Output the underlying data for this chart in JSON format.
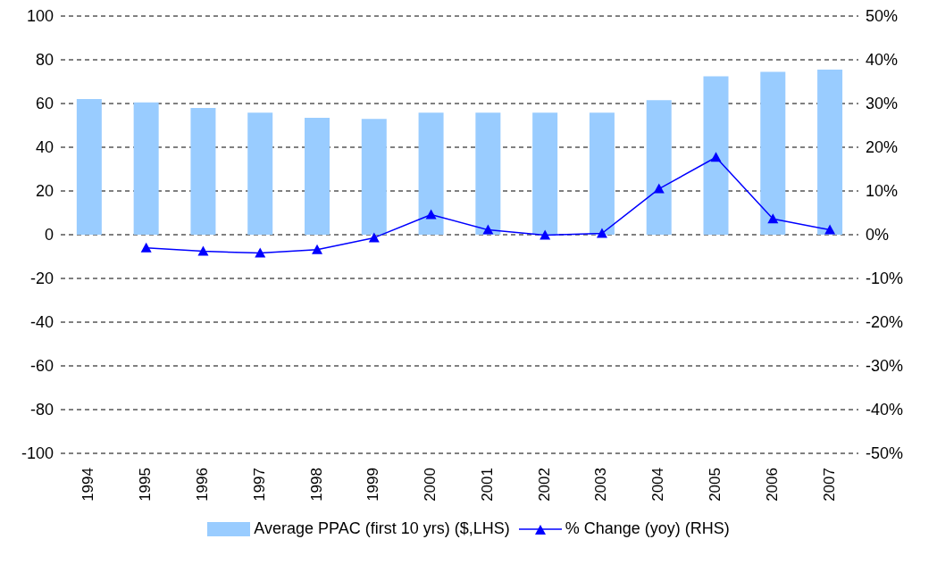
{
  "chart_data": {
    "type": "bar",
    "categories": [
      "1994",
      "1995",
      "1996",
      "1997",
      "1998",
      "1999",
      "2000",
      "2001",
      "2002",
      "2003",
      "2004",
      "2005",
      "2006",
      "2007"
    ],
    "series": [
      {
        "name": "Average PPAC (first 10 yrs) ($,LHS)",
        "color": "#99ccff",
        "values": [
          62,
          60.5,
          58,
          55.8,
          53.5,
          53,
          55.8,
          55.8,
          55.8,
          55.8,
          61.5,
          72.5,
          74.5,
          75.5
        ]
      },
      {
        "name": "% Change (yoy) (RHS)",
        "type": "line",
        "axis": "y2",
        "color": "#0000ff",
        "values": [
          null,
          -3.0,
          -3.8,
          -4.2,
          -3.4,
          -0.7,
          4.6,
          1.1,
          -0.1,
          0.3,
          10.5,
          17.7,
          3.6,
          1.1
        ]
      }
    ],
    "ylim": [
      -100,
      100
    ],
    "yticks": [
      -100,
      -80,
      -60,
      -40,
      -20,
      0,
      20,
      40,
      60,
      80,
      100
    ],
    "y2lim": [
      -50,
      50
    ],
    "y2ticks": [
      {
        "value": -50,
        "label": "-50%"
      },
      {
        "value": -40,
        "label": "-40%"
      },
      {
        "value": -30,
        "label": "-30%"
      },
      {
        "value": -20,
        "label": "-20%"
      },
      {
        "value": -10,
        "label": "-10%"
      },
      {
        "value": 0,
        "label": "0%"
      },
      {
        "value": 10,
        "label": "10%"
      },
      {
        "value": 20,
        "label": "20%"
      },
      {
        "value": 30,
        "label": "30%"
      },
      {
        "value": 40,
        "label": "40%"
      },
      {
        "value": 50,
        "label": "50%"
      }
    ],
    "grid": "y",
    "legend": "bottom",
    "marker": "triangle",
    "line_style": "solid"
  }
}
